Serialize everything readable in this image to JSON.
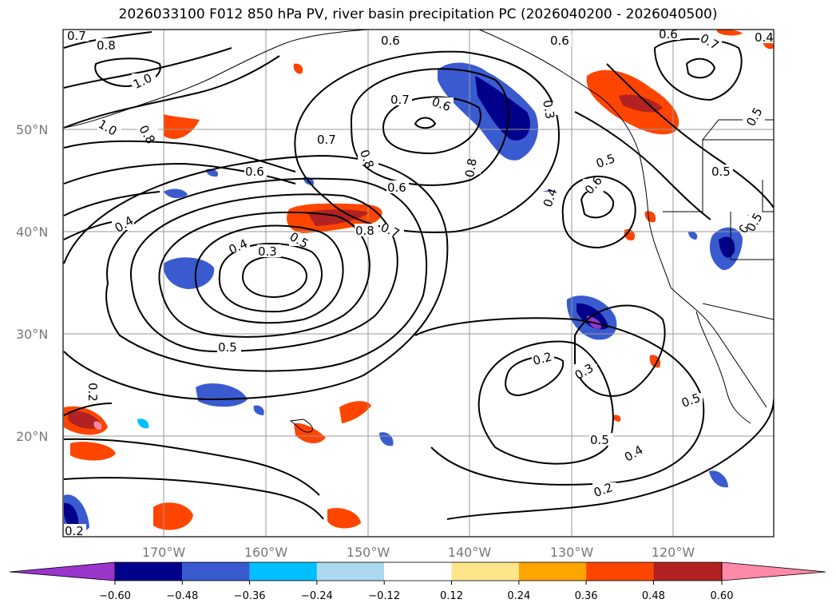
{
  "title": "2026033100 F012 850 hPa PV, river basin precipitation PC (2026040200 - 2026040500)",
  "lat_labels": [
    "50°N",
    "40°N",
    "30°N",
    "20°N"
  ],
  "lon_labels": [
    "170°W",
    "160°W",
    "150°W",
    "140°W",
    "130°W",
    "120°W"
  ],
  "contour_labels": [
    "0.7",
    "0.8",
    "1.0",
    "1.0",
    "0.8",
    "0.4",
    "0.6",
    "0.6",
    "0.7",
    "0.6",
    "0.3",
    "0.7",
    "0.8",
    "0.6",
    "0.8",
    "0.6",
    "0.5",
    "0.4",
    "0.6",
    "0.5",
    "0.5",
    "0.6",
    "0.4",
    "0.3",
    "0.5",
    "0.8",
    "0.7",
    "0.5",
    "0.4",
    "0.5",
    "0.2",
    "0.3",
    "0.5",
    "0.5",
    "0.4",
    "0.2",
    "0.2",
    "0.2",
    "0.7",
    "0.5"
  ],
  "colorbar": {
    "ticks": [
      "−0.60",
      "−0.48",
      "−0.36",
      "−0.24",
      "−0.12",
      "0.12",
      "0.24",
      "0.36",
      "0.48",
      "0.60"
    ],
    "colors": [
      "#9a35cc",
      "#00008b",
      "#3a5bd0",
      "#00bfff",
      "#add8f2",
      "#ffffff",
      "#fde68a",
      "#fea500",
      "#fe4500",
      "#b22222",
      "#ff89a8"
    ]
  }
}
